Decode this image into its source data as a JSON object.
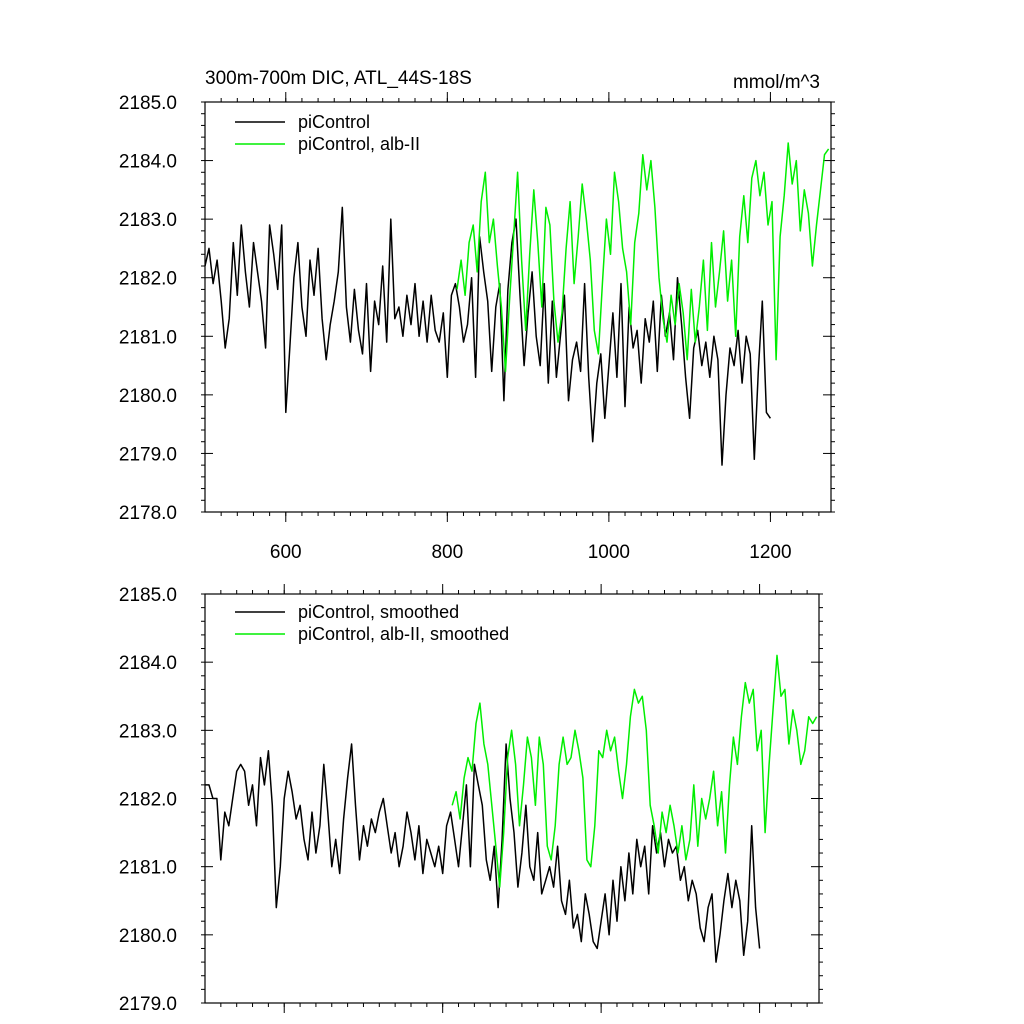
{
  "chart_data": [
    {
      "type": "line",
      "title_left": "300m-700m DIC, ATL_44S-18S",
      "title_right": "mmol/m^3",
      "xlim": [
        500,
        1275
      ],
      "ylim": [
        2178.0,
        2185.0
      ],
      "x_ticks": [
        600,
        800,
        1000,
        1200
      ],
      "y_ticks": [
        2178.0,
        2179.0,
        2180.0,
        2181.0,
        2182.0,
        2183.0,
        2184.0,
        2185.0
      ],
      "y_tick_labels": [
        "2178.0",
        "2179.0",
        "2180.0",
        "2181.0",
        "2182.0",
        "2183.0",
        "2184.0",
        "2185.0"
      ],
      "x_tick_labels": [
        "600",
        "800",
        "1000",
        "1200"
      ],
      "legend_position": "top-left",
      "series": [
        {
          "name": "piControl",
          "color": "#000000",
          "x": [
            500,
            505,
            510,
            515,
            520,
            525,
            530,
            535,
            540,
            545,
            550,
            555,
            560,
            565,
            570,
            575,
            580,
            585,
            590,
            595,
            600,
            605,
            610,
            615,
            620,
            625,
            630,
            635,
            640,
            645,
            650,
            655,
            660,
            665,
            670,
            675,
            680,
            685,
            690,
            695,
            700,
            705,
            710,
            715,
            720,
            725,
            730,
            735,
            740,
            745,
            750,
            755,
            760,
            765,
            770,
            775,
            780,
            785,
            790,
            795,
            800,
            805,
            810,
            815,
            820,
            825,
            830,
            835,
            840,
            845,
            850,
            855,
            860,
            865,
            870,
            875,
            880,
            885,
            890,
            895,
            900,
            905,
            910,
            915,
            920,
            925,
            930,
            935,
            940,
            945,
            950,
            955,
            960,
            965,
            970,
            975,
            980,
            985,
            990,
            995,
            1000,
            1005,
            1010,
            1015,
            1020,
            1025,
            1030,
            1035,
            1040,
            1045,
            1050,
            1055,
            1060,
            1065,
            1070,
            1075,
            1080,
            1085,
            1090,
            1095,
            1100,
            1105,
            1110,
            1115,
            1120,
            1125,
            1130,
            1135,
            1140,
            1145,
            1150,
            1155,
            1160,
            1165,
            1170,
            1175,
            1180,
            1185,
            1190,
            1195,
            1200
          ],
          "values": [
            2182.2,
            2182.5,
            2181.9,
            2182.3,
            2181.6,
            2180.8,
            2181.3,
            2182.6,
            2181.7,
            2182.9,
            2182.1,
            2181.5,
            2182.6,
            2182.1,
            2181.6,
            2180.8,
            2182.9,
            2182.4,
            2181.8,
            2182.9,
            2179.7,
            2180.8,
            2182.0,
            2182.6,
            2181.5,
            2181.0,
            2182.3,
            2181.7,
            2182.5,
            2181.3,
            2180.6,
            2181.2,
            2181.6,
            2182.1,
            2183.2,
            2181.5,
            2180.9,
            2181.8,
            2181.1,
            2180.7,
            2181.9,
            2180.4,
            2181.6,
            2181.2,
            2182.2,
            2180.9,
            2183.0,
            2181.3,
            2181.5,
            2181.0,
            2181.7,
            2181.2,
            2181.9,
            2181.0,
            2181.6,
            2180.9,
            2181.7,
            2181.1,
            2180.9,
            2181.4,
            2180.3,
            2181.7,
            2181.9,
            2181.5,
            2180.9,
            2181.2,
            2182.0,
            2180.3,
            2182.7,
            2182.1,
            2181.6,
            2180.4,
            2181.5,
            2181.9,
            2179.9,
            2181.8,
            2182.6,
            2183.0,
            2181.7,
            2180.5,
            2181.4,
            2182.1,
            2181.0,
            2180.5,
            2181.9,
            2180.2,
            2181.6,
            2180.3,
            2181.0,
            2181.7,
            2179.9,
            2180.6,
            2180.9,
            2180.4,
            2181.9,
            2180.3,
            2179.2,
            2180.2,
            2180.7,
            2179.6,
            2180.5,
            2181.4,
            2180.3,
            2181.9,
            2179.8,
            2181.5,
            2180.8,
            2181.1,
            2180.2,
            2181.3,
            2180.9,
            2181.6,
            2180.4,
            2181.7,
            2181.0,
            2181.4,
            2180.6,
            2182.0,
            2181.2,
            2180.3,
            2179.6,
            2180.8,
            2181.1,
            2180.5,
            2180.9,
            2180.3,
            2181.0,
            2180.6,
            2178.8,
            2180.0,
            2180.8,
            2180.5,
            2181.1,
            2180.2,
            2181.0,
            2180.7,
            2178.9,
            2180.4,
            2181.6,
            2179.7,
            2179.6
          ]
        },
        {
          "name": "piControl, alb-II",
          "color": "#00ee00",
          "x": [
            812,
            817,
            822,
            827,
            832,
            837,
            842,
            847,
            852,
            857,
            862,
            867,
            872,
            877,
            882,
            887,
            892,
            897,
            902,
            907,
            912,
            917,
            922,
            927,
            932,
            937,
            942,
            947,
            952,
            957,
            962,
            967,
            972,
            977,
            982,
            987,
            992,
            997,
            1002,
            1007,
            1012,
            1017,
            1022,
            1027,
            1032,
            1037,
            1042,
            1047,
            1052,
            1057,
            1062,
            1067,
            1072,
            1077,
            1082,
            1087,
            1092,
            1097,
            1102,
            1107,
            1112,
            1117,
            1122,
            1127,
            1132,
            1137,
            1142,
            1147,
            1152,
            1157,
            1162,
            1167,
            1172,
            1177,
            1182,
            1187,
            1192,
            1197,
            1202,
            1207,
            1212,
            1217,
            1222,
            1227,
            1232,
            1237,
            1242,
            1247,
            1252,
            1257,
            1262,
            1267,
            1272
          ],
          "values": [
            2181.8,
            2182.3,
            2181.7,
            2182.6,
            2182.9,
            2182.1,
            2183.3,
            2183.8,
            2182.6,
            2183.0,
            2182.2,
            2181.5,
            2180.4,
            2181.6,
            2182.7,
            2183.8,
            2182.3,
            2181.1,
            2182.4,
            2183.5,
            2182.6,
            2181.5,
            2183.2,
            2182.9,
            2181.6,
            2180.9,
            2181.4,
            2182.5,
            2183.3,
            2181.9,
            2182.7,
            2183.6,
            2183.0,
            2182.3,
            2181.1,
            2180.7,
            2181.9,
            2183.0,
            2182.4,
            2183.8,
            2183.3,
            2182.5,
            2182.1,
            2181.2,
            2182.6,
            2183.1,
            2184.1,
            2183.5,
            2184.0,
            2183.2,
            2182.0,
            2181.3,
            2180.9,
            2181.7,
            2181.2,
            2181.9,
            2181.4,
            2180.6,
            2181.8,
            2180.9,
            2181.5,
            2182.3,
            2181.1,
            2182.6,
            2181.5,
            2182.1,
            2182.8,
            2181.6,
            2182.3,
            2181.0,
            2182.7,
            2183.4,
            2182.6,
            2183.7,
            2184.0,
            2183.4,
            2183.8,
            2182.9,
            2183.3,
            2180.6,
            2182.7,
            2183.4,
            2184.3,
            2183.6,
            2184.0,
            2182.8,
            2183.5,
            2183.1,
            2182.2,
            2182.9,
            2183.5,
            2184.1,
            2184.2
          ]
        }
      ]
    },
    {
      "type": "line",
      "xlim": [
        500,
        1275
      ],
      "ylim": [
        2179.0,
        2185.0
      ],
      "x_ticks": [
        600,
        800,
        1000,
        1200
      ],
      "y_ticks": [
        2179.0,
        2180.0,
        2181.0,
        2182.0,
        2183.0,
        2184.0,
        2185.0
      ],
      "y_tick_labels": [
        "2179.0",
        "2180.0",
        "2181.0",
        "2182.0",
        "2183.0",
        "2184.0",
        "2185.0"
      ],
      "legend_position": "top-left",
      "series": [
        {
          "name": "piControl, smoothed",
          "color": "#000000",
          "x": [
            500,
            505,
            510,
            515,
            520,
            525,
            530,
            535,
            540,
            545,
            550,
            555,
            560,
            565,
            570,
            575,
            580,
            585,
            590,
            595,
            600,
            605,
            610,
            615,
            620,
            625,
            630,
            635,
            640,
            645,
            650,
            655,
            660,
            665,
            670,
            675,
            680,
            685,
            690,
            695,
            700,
            705,
            710,
            715,
            720,
            725,
            730,
            735,
            740,
            745,
            750,
            755,
            760,
            765,
            770,
            775,
            780,
            785,
            790,
            795,
            800,
            805,
            810,
            815,
            820,
            825,
            830,
            835,
            840,
            845,
            850,
            855,
            860,
            865,
            870,
            875,
            880,
            885,
            890,
            895,
            900,
            905,
            910,
            915,
            920,
            925,
            930,
            935,
            940,
            945,
            950,
            955,
            960,
            965,
            970,
            975,
            980,
            985,
            990,
            995,
            1000,
            1005,
            1010,
            1015,
            1020,
            1025,
            1030,
            1035,
            1040,
            1045,
            1050,
            1055,
            1060,
            1065,
            1070,
            1075,
            1080,
            1085,
            1090,
            1095,
            1100,
            1105,
            1110,
            1115,
            1120,
            1125,
            1130,
            1135,
            1140,
            1145,
            1150,
            1155,
            1160,
            1165,
            1170,
            1175,
            1180,
            1185,
            1190,
            1195,
            1200
          ],
          "values": [
            2182.2,
            2182.2,
            2182.0,
            2182.0,
            2181.1,
            2181.8,
            2181.6,
            2182.0,
            2182.4,
            2182.5,
            2182.4,
            2181.9,
            2182.2,
            2181.6,
            2182.6,
            2182.2,
            2182.7,
            2181.9,
            2180.4,
            2181.0,
            2182.0,
            2182.4,
            2182.1,
            2181.7,
            2181.9,
            2181.4,
            2181.1,
            2181.8,
            2181.2,
            2181.6,
            2182.5,
            2181.8,
            2181.0,
            2181.4,
            2180.9,
            2181.7,
            2182.3,
            2182.8,
            2181.9,
            2181.1,
            2181.6,
            2181.3,
            2181.7,
            2181.5,
            2181.8,
            2182.0,
            2181.6,
            2181.2,
            2181.5,
            2181.0,
            2181.3,
            2181.8,
            2181.5,
            2181.1,
            2181.6,
            2180.9,
            2181.4,
            2181.2,
            2181.0,
            2181.3,
            2180.9,
            2181.6,
            2181.8,
            2181.4,
            2181.0,
            2181.6,
            2182.2,
            2181.0,
            2182.5,
            2182.2,
            2181.9,
            2181.1,
            2180.8,
            2181.3,
            2180.4,
            2181.4,
            2182.8,
            2182.0,
            2181.5,
            2180.7,
            2181.2,
            2181.9,
            2181.0,
            2180.8,
            2181.5,
            2180.6,
            2180.8,
            2181.0,
            2180.7,
            2181.3,
            2180.5,
            2180.3,
            2180.8,
            2180.1,
            2180.3,
            2179.9,
            2180.6,
            2180.3,
            2179.9,
            2179.8,
            2180.2,
            2180.6,
            2180.0,
            2180.8,
            2180.2,
            2181.0,
            2180.5,
            2181.2,
            2180.6,
            2181.4,
            2181.0,
            2181.3,
            2180.6,
            2181.6,
            2181.2,
            2181.5,
            2181.0,
            2181.4,
            2181.2,
            2181.3,
            2180.8,
            2181.0,
            2180.5,
            2180.8,
            2180.6,
            2180.1,
            2179.9,
            2180.4,
            2180.6,
            2179.6,
            2180.0,
            2180.5,
            2180.9,
            2180.4,
            2180.8,
            2180.5,
            2179.7,
            2180.2,
            2181.6,
            2180.4,
            2179.8
          ]
        },
        {
          "name": "piControl, alb-II, smoothed",
          "color": "#00ee00",
          "x": [
            812,
            817,
            822,
            827,
            832,
            837,
            842,
            847,
            852,
            857,
            862,
            867,
            872,
            877,
            882,
            887,
            892,
            897,
            902,
            907,
            912,
            917,
            922,
            927,
            932,
            937,
            942,
            947,
            952,
            957,
            962,
            967,
            972,
            977,
            982,
            987,
            992,
            997,
            1002,
            1007,
            1012,
            1017,
            1022,
            1027,
            1032,
            1037,
            1042,
            1047,
            1052,
            1057,
            1062,
            1067,
            1072,
            1077,
            1082,
            1087,
            1092,
            1097,
            1102,
            1107,
            1112,
            1117,
            1122,
            1127,
            1132,
            1137,
            1142,
            1147,
            1152,
            1157,
            1162,
            1167,
            1172,
            1177,
            1182,
            1187,
            1192,
            1197,
            1202,
            1207,
            1212,
            1217,
            1222,
            1227,
            1232,
            1237,
            1242,
            1247,
            1252,
            1257,
            1262,
            1267,
            1272
          ],
          "values": [
            2181.9,
            2182.1,
            2181.7,
            2182.3,
            2182.6,
            2182.4,
            2183.1,
            2183.4,
            2182.8,
            2182.5,
            2181.9,
            2181.3,
            2180.7,
            2181.5,
            2182.6,
            2183.0,
            2182.5,
            2181.6,
            2182.2,
            2182.9,
            2182.6,
            2181.9,
            2182.9,
            2182.5,
            2181.3,
            2181.1,
            2181.6,
            2182.5,
            2182.9,
            2182.5,
            2182.6,
            2183.0,
            2182.7,
            2182.3,
            2181.1,
            2181.0,
            2181.6,
            2182.7,
            2182.6,
            2183.0,
            2182.7,
            2182.9,
            2182.4,
            2182.0,
            2182.5,
            2183.2,
            2183.6,
            2183.4,
            2183.5,
            2183.0,
            2181.9,
            2181.6,
            2181.2,
            2181.8,
            2181.5,
            2181.9,
            2181.6,
            2181.2,
            2181.6,
            2181.1,
            2181.4,
            2182.2,
            2181.3,
            2182.0,
            2181.7,
            2182.0,
            2182.4,
            2181.6,
            2182.1,
            2181.2,
            2182.2,
            2182.9,
            2182.5,
            2183.2,
            2183.7,
            2183.4,
            2183.6,
            2182.7,
            2183.0,
            2181.5,
            2182.5,
            2183.3,
            2184.1,
            2183.5,
            2183.6,
            2182.8,
            2183.3,
            2183.0,
            2182.5,
            2182.7,
            2183.2,
            2183.1,
            2183.2
          ]
        }
      ]
    }
  ]
}
